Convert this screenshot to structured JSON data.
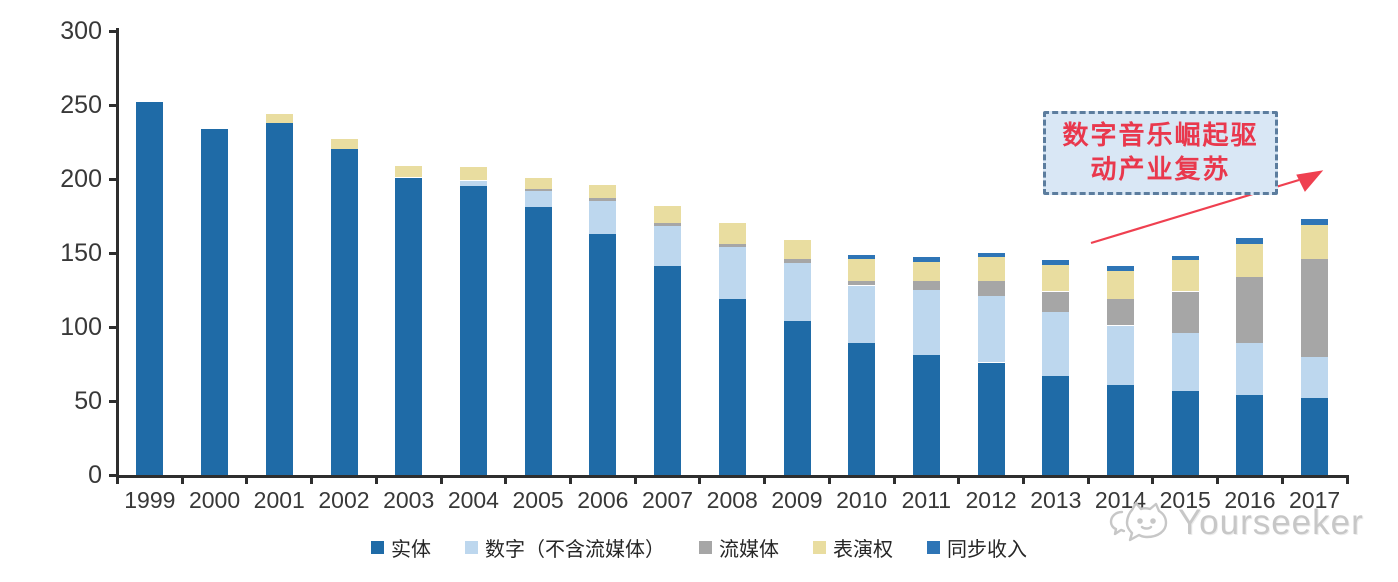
{
  "chart_data": {
    "type": "bar",
    "stacked": true,
    "title": "",
    "xlabel": "",
    "ylabel": "",
    "categories": [
      "1999",
      "2000",
      "2001",
      "2002",
      "2003",
      "2004",
      "2005",
      "2006",
      "2007",
      "2008",
      "2009",
      "2010",
      "2011",
      "2012",
      "2013",
      "2014",
      "2015",
      "2016",
      "2017"
    ],
    "series": [
      {
        "name": "实体",
        "color": "#1f6ba7",
        "values": [
          252,
          234,
          238,
          220,
          201,
          195,
          181,
          163,
          141,
          119,
          104,
          89,
          81,
          76,
          67,
          61,
          57,
          54,
          52
        ]
      },
      {
        "name": "数字（不含流媒体）",
        "color": "#bdd7ee",
        "values": [
          0,
          0,
          0,
          0,
          0,
          4,
          11,
          22,
          27,
          35,
          39,
          39,
          44,
          45,
          43,
          40,
          39,
          35,
          28
        ]
      },
      {
        "name": "流媒体",
        "color": "#a6a6a6",
        "values": [
          0,
          0,
          0,
          0,
          0,
          0,
          1,
          2,
          2,
          2,
          3,
          3,
          6,
          10,
          14,
          18,
          28,
          45,
          66
        ]
      },
      {
        "name": "表演权",
        "color": "#e9dda0",
        "values": [
          0,
          0,
          6,
          7,
          8,
          9,
          8,
          9,
          12,
          14,
          13,
          15,
          13,
          16,
          18,
          19,
          21,
          22,
          23
        ]
      },
      {
        "name": "同步收入",
        "color": "#2e75b6",
        "values": [
          0,
          0,
          0,
          0,
          0,
          0,
          0,
          0,
          0,
          0,
          0,
          3,
          3,
          3,
          3,
          3,
          3,
          4,
          4
        ]
      }
    ],
    "ylim": [
      0,
      300
    ],
    "yticks": [
      0,
      50,
      100,
      150,
      200,
      250,
      300
    ],
    "grid": false,
    "legend_position": "bottom"
  },
  "annotation": {
    "line1": "数字音乐崛起驱",
    "line2": "动产业复苏",
    "full_text": "数字音乐崛起驱动产业复苏"
  },
  "watermark": {
    "text": "Yourseeker"
  },
  "colors": {
    "axis": "#2e2e2e",
    "tick_label": "#383838",
    "annotation_border": "#5c7d9e",
    "annotation_fill": "#d9e7f5",
    "annotation_text": "#e9384d",
    "arrow": "#ef4050",
    "watermark": "#c7c7c7"
  }
}
